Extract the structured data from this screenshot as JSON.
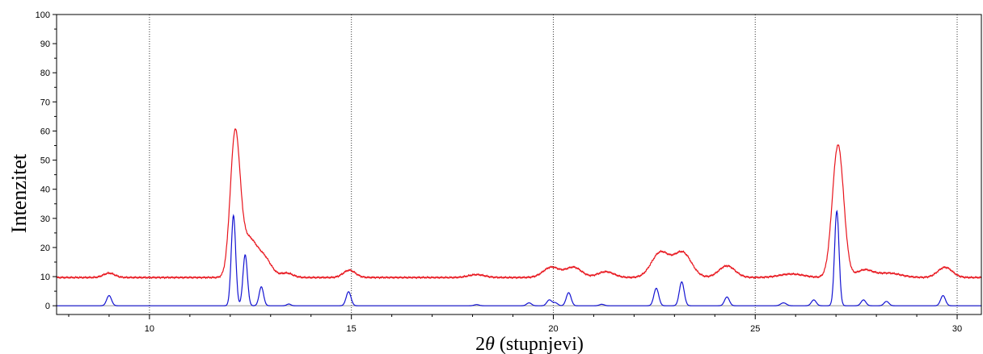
{
  "chart_data": {
    "type": "line",
    "xlabel_prefix": "2",
    "xlabel_symbol": "θ",
    "xlabel_suffix": " (stupnjevi)",
    "ylabel": "Intenzitet",
    "xlim": [
      7.7,
      30.6
    ],
    "ylim": [
      -3,
      100
    ],
    "x_ticks": [
      10,
      15,
      20,
      25,
      30
    ],
    "y_ticks": [
      0,
      10,
      20,
      30,
      40,
      50,
      60,
      70,
      80,
      90,
      100
    ],
    "grid": "vertical dotted lines at major x ticks",
    "legend": "none",
    "series": [
      {
        "color": "#e8141c",
        "baseline": 9.7,
        "peaks": [
          {
            "x": 9.0,
            "h": 1.5,
            "w": 0.14
          },
          {
            "x": 12.12,
            "h": 47.5,
            "w": 0.12
          },
          {
            "x": 12.45,
            "h": 13.0,
            "w": 0.2
          },
          {
            "x": 12.85,
            "h": 6.0,
            "w": 0.18
          },
          {
            "x": 13.4,
            "h": 1.5,
            "w": 0.15
          },
          {
            "x": 14.95,
            "h": 2.5,
            "w": 0.15
          },
          {
            "x": 18.1,
            "h": 1.0,
            "w": 0.2
          },
          {
            "x": 19.95,
            "h": 3.5,
            "w": 0.2
          },
          {
            "x": 20.5,
            "h": 3.5,
            "w": 0.2
          },
          {
            "x": 21.3,
            "h": 2.0,
            "w": 0.2
          },
          {
            "x": 22.65,
            "h": 8.5,
            "w": 0.22
          },
          {
            "x": 23.2,
            "h": 8.5,
            "w": 0.22
          },
          {
            "x": 24.3,
            "h": 4.0,
            "w": 0.2
          },
          {
            "x": 25.9,
            "h": 1.2,
            "w": 0.3
          },
          {
            "x": 27.05,
            "h": 45.5,
            "w": 0.14
          },
          {
            "x": 27.7,
            "h": 2.5,
            "w": 0.2
          },
          {
            "x": 28.3,
            "h": 1.5,
            "w": 0.3
          },
          {
            "x": 29.7,
            "h": 3.5,
            "w": 0.18
          }
        ]
      },
      {
        "color": "#1414d2",
        "baseline": 0,
        "peaks": [
          {
            "x": 9.0,
            "h": 3.5,
            "w": 0.06
          },
          {
            "x": 12.08,
            "h": 31,
            "w": 0.055
          },
          {
            "x": 12.37,
            "h": 17.5,
            "w": 0.055
          },
          {
            "x": 12.77,
            "h": 6.5,
            "w": 0.055
          },
          {
            "x": 13.45,
            "h": 0.6,
            "w": 0.05
          },
          {
            "x": 14.93,
            "h": 4.8,
            "w": 0.06
          },
          {
            "x": 18.1,
            "h": 0.4,
            "w": 0.06
          },
          {
            "x": 19.4,
            "h": 1.0,
            "w": 0.06
          },
          {
            "x": 19.9,
            "h": 2.0,
            "w": 0.06
          },
          {
            "x": 20.05,
            "h": 1.0,
            "w": 0.06
          },
          {
            "x": 20.38,
            "h": 4.5,
            "w": 0.06
          },
          {
            "x": 21.2,
            "h": 0.5,
            "w": 0.06
          },
          {
            "x": 22.55,
            "h": 6.0,
            "w": 0.06
          },
          {
            "x": 23.18,
            "h": 8.2,
            "w": 0.06
          },
          {
            "x": 24.3,
            "h": 3.0,
            "w": 0.06
          },
          {
            "x": 25.7,
            "h": 1.0,
            "w": 0.07
          },
          {
            "x": 26.45,
            "h": 2.0,
            "w": 0.06
          },
          {
            "x": 27.02,
            "h": 32.5,
            "w": 0.055
          },
          {
            "x": 27.68,
            "h": 2.0,
            "w": 0.06
          },
          {
            "x": 28.25,
            "h": 1.5,
            "w": 0.06
          },
          {
            "x": 29.65,
            "h": 3.5,
            "w": 0.06
          }
        ]
      }
    ]
  }
}
